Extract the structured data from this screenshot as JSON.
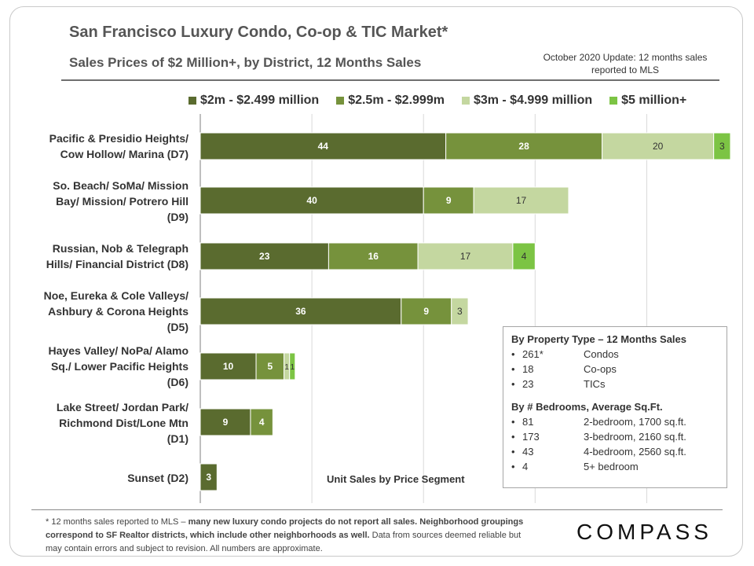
{
  "title": "San Francisco Luxury Condo, Co-op & TIC Market*",
  "subtitle": "Sales Prices of $2 Million+, by District, 12 Months Sales",
  "update_note": "October 2020 Update: 12 months sales reported to MLS",
  "segment_caption": "Unit Sales by Price Segment",
  "colors": {
    "series1": "#5a6b2f",
    "series2": "#76923c",
    "series3": "#c4d7a0",
    "series4": "#7cc444",
    "grid": "#d9d9d9",
    "axis": "#7f7f7f"
  },
  "chart_data": {
    "type": "bar",
    "orientation": "horizontal",
    "stacked": true,
    "categories": [
      "Pacific & Presidio Heights/\nCow Hollow/ Marina (D7)",
      "So. Beach/ SoMa/ Mission\nBay/ Mission/ Potrero Hill\n(D9)",
      "Russian, Nob & Telegraph\nHills/ Financial District (D8)",
      "Noe, Eureka & Cole Valleys/\nAshbury & Corona Heights\n(D5)",
      "Hayes Valley/ NoPa/ Alamo\nSq./ Lower Pacific Heights\n(D6)",
      "Lake Street/ Jordan Park/\nRichmond Dist/Lone Mtn\n(D1)",
      "Sunset (D2)"
    ],
    "series": [
      {
        "name": "$2m - $2.499 million",
        "values": [
          44,
          40,
          23,
          36,
          10,
          9,
          3
        ]
      },
      {
        "name": "$2.5m - $2.999m",
        "values": [
          28,
          9,
          16,
          9,
          5,
          4,
          0
        ]
      },
      {
        "name": "$3m - $4.999 million",
        "values": [
          20,
          17,
          17,
          3,
          1,
          0,
          0
        ]
      },
      {
        "name": "$5 million+",
        "values": [
          3,
          0,
          4,
          0,
          1,
          0,
          0
        ]
      }
    ],
    "xlim": [
      0,
      95
    ],
    "grid": true,
    "legend": "top"
  },
  "info_box": {
    "heading1": "By Property Type – 12 Months Sales",
    "property_types": [
      {
        "count": "261*",
        "label": "Condos"
      },
      {
        "count": "18",
        "label": "Co-ops"
      },
      {
        "count": "23",
        "label": "TICs"
      }
    ],
    "heading2": "By # Bedrooms, Average Sq.Ft.",
    "bedrooms": [
      {
        "count": "81",
        "label": "2-bedroom, 1700 sq.ft."
      },
      {
        "count": "173",
        "label": "3-bedroom, 2160 sq.ft."
      },
      {
        "count": "43",
        "label": "4-bedroom, 2560 sq.ft."
      },
      {
        "count": "4",
        "label": "5+ bedroom"
      }
    ]
  },
  "footnote": {
    "part1": "* 12 months sales reported to MLS – ",
    "part2": "many new luxury condo projects do not report all sales.",
    "part3": " Neighborhood groupings correspond to SF Realtor districts, which include other neighborhoods as well.",
    "part4": " Data from sources deemed reliable but may contain errors and subject to revision. All numbers are approximate."
  },
  "logo_text": "COMPASS"
}
